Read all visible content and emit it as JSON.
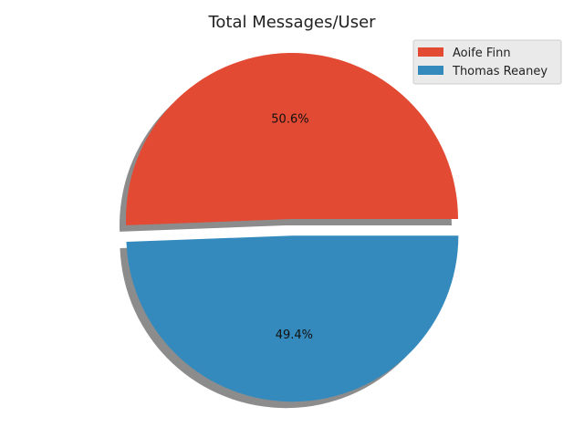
{
  "chart_data": {
    "type": "pie",
    "title": "Total Messages/User",
    "labels": [
      "Aoife Finn",
      "Thomas Reaney"
    ],
    "values": [
      50.6,
      49.4
    ],
    "value_labels": [
      "50.6%",
      "49.4%"
    ],
    "colors": [
      "#E24A33",
      "#348ABD"
    ],
    "explode": [
      0,
      0.1
    ],
    "shadow": true,
    "legend": "top-right"
  }
}
